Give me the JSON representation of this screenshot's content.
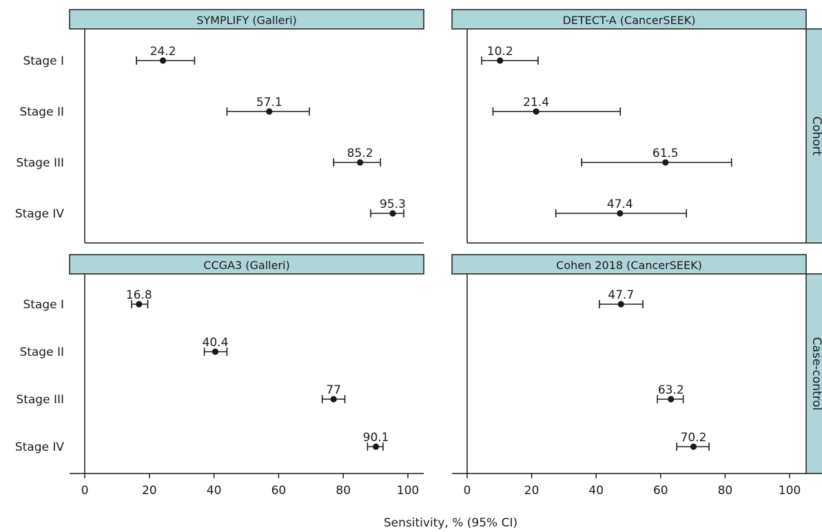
{
  "figure": {
    "xlabel": "Sensitivity, % (95% CI)",
    "row_strips": [
      "Cohort",
      "Case-control"
    ],
    "strip_color": "#aed6d9",
    "point_color": "#1a1a1a"
  },
  "chart_data": [
    {
      "type": "scatter",
      "title": "SYMPLIFY (Galleri)",
      "design": "Cohort",
      "categories": [
        "Stage I",
        "Stage II",
        "Stage III",
        "Stage IV"
      ],
      "values": [
        24.2,
        57.1,
        85.2,
        95.3
      ],
      "ci_lower": [
        16.0,
        44.0,
        77.0,
        88.5
      ],
      "ci_upper": [
        34.0,
        69.5,
        91.5,
        98.7
      ],
      "value_labels": [
        "24.2",
        "57.1",
        "85.2",
        "95.3"
      ],
      "xlim": [
        0,
        100
      ],
      "xticks": [
        0,
        20,
        40,
        60,
        80,
        100
      ]
    },
    {
      "type": "scatter",
      "title": "DETECT-A (CancerSEEK)",
      "design": "Cohort",
      "categories": [
        "Stage I",
        "Stage II",
        "Stage III",
        "Stage IV"
      ],
      "values": [
        10.2,
        21.4,
        61.5,
        47.4
      ],
      "ci_lower": [
        4.5,
        8.0,
        35.5,
        27.5
      ],
      "ci_upper": [
        22.0,
        47.5,
        82.0,
        68.0
      ],
      "value_labels": [
        "10.2",
        "21.4",
        "61.5",
        "47.4"
      ],
      "xlim": [
        0,
        100
      ],
      "xticks": [
        0,
        20,
        40,
        60,
        80,
        100
      ]
    },
    {
      "type": "scatter",
      "title": "CCGA3 (Galleri)",
      "design": "Case-control",
      "categories": [
        "Stage I",
        "Stage II",
        "Stage III",
        "Stage IV"
      ],
      "values": [
        16.8,
        40.4,
        77.0,
        90.1
      ],
      "ci_lower": [
        14.5,
        37.0,
        73.5,
        87.5
      ],
      "ci_upper": [
        19.5,
        44.0,
        80.5,
        92.3
      ],
      "value_labels": [
        "16.8",
        "40.4",
        "77",
        "90.1"
      ],
      "xlim": [
        0,
        100
      ],
      "xticks": [
        0,
        20,
        40,
        60,
        80,
        100
      ]
    },
    {
      "type": "scatter",
      "title": "Cohen 2018 (CancerSEEK)",
      "design": "Case-control",
      "categories": [
        "Stage I",
        "Stage II",
        "Stage III",
        "Stage IV"
      ],
      "values": [
        47.7,
        null,
        63.2,
        70.2
      ],
      "ci_lower": [
        41.0,
        null,
        59.0,
        65.0
      ],
      "ci_upper": [
        54.5,
        null,
        67.0,
        75.0
      ],
      "value_labels": [
        "47.7",
        "",
        "63.2",
        "70.2"
      ],
      "xlim": [
        0,
        100
      ],
      "xticks": [
        0,
        20,
        40,
        60,
        80,
        100
      ]
    }
  ]
}
